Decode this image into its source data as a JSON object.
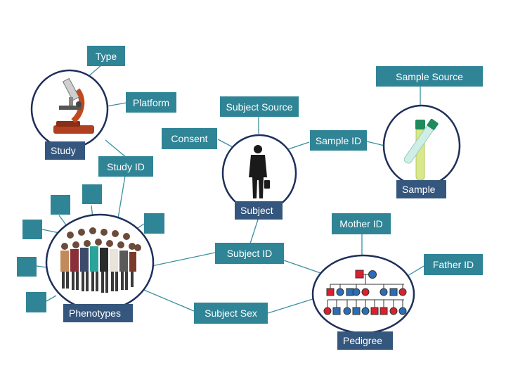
{
  "nodes": {
    "study": "Study",
    "subject": "Subject",
    "sample": "Sample",
    "phenotypes": "Phenotypes",
    "pedigree": "Pedigree"
  },
  "attributes": {
    "type": "Type",
    "platform": "Platform",
    "study_id": "Study ID",
    "subject_source": "Subject Source",
    "consent": "Consent",
    "sample_id": "Sample ID",
    "sample_source": "Sample Source",
    "subject_id": "Subject ID",
    "subject_sex": "Subject Sex",
    "mother_id": "Mother ID",
    "father_id": "Father ID"
  },
  "colors": {
    "attribute_box": "#2f8496",
    "node_label": "#35567d",
    "circle_stroke": "#1e2f5a",
    "connector": "#3a8fa0",
    "pedigree_female": "#d9202f",
    "pedigree_male": "#2a6fb5"
  }
}
